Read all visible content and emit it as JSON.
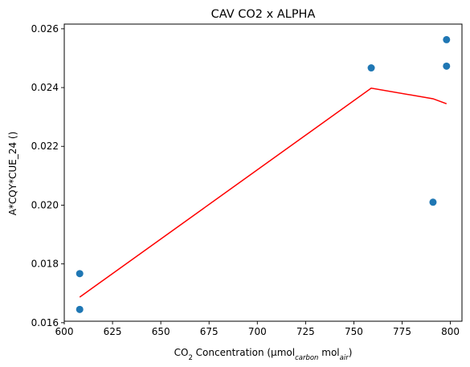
{
  "chart_data": {
    "type": "scatter",
    "title": "CAV CO2 x ALPHA",
    "xlabel": {
      "prefix": "CO",
      "prefix_sub": "2",
      "middle": " Concentration (µmol",
      "sub1": "carbon",
      "middle2": " mol",
      "sub2": "air",
      "suffix": ")"
    },
    "ylabel": "A*CQY*CUE_24 ()",
    "xlim": [
      600,
      806
    ],
    "ylim": [
      0.01605,
      0.02616
    ],
    "xticks": [
      600,
      625,
      650,
      675,
      700,
      725,
      750,
      775,
      800
    ],
    "xtick_labels": [
      "600",
      "625",
      "650",
      "675",
      "700",
      "725",
      "750",
      "775",
      "800"
    ],
    "yticks": [
      0.016,
      0.018,
      0.02,
      0.022,
      0.024,
      0.026
    ],
    "ytick_labels": [
      "0.016",
      "0.018",
      "0.020",
      "0.022",
      "0.024",
      "0.026"
    ],
    "grid": false,
    "series": [
      {
        "kind": "scatter",
        "color": "#1f77b4",
        "x": [
          608,
          608,
          759,
          791,
          798,
          798
        ],
        "y": [
          0.01767,
          0.01645,
          0.02467,
          0.0201,
          0.02563,
          0.02473
        ]
      },
      {
        "kind": "line",
        "color": "#ff0000",
        "x": [
          608,
          759,
          791,
          798
        ],
        "y": [
          0.01687,
          0.02398,
          0.02362,
          0.02345
        ]
      }
    ]
  }
}
